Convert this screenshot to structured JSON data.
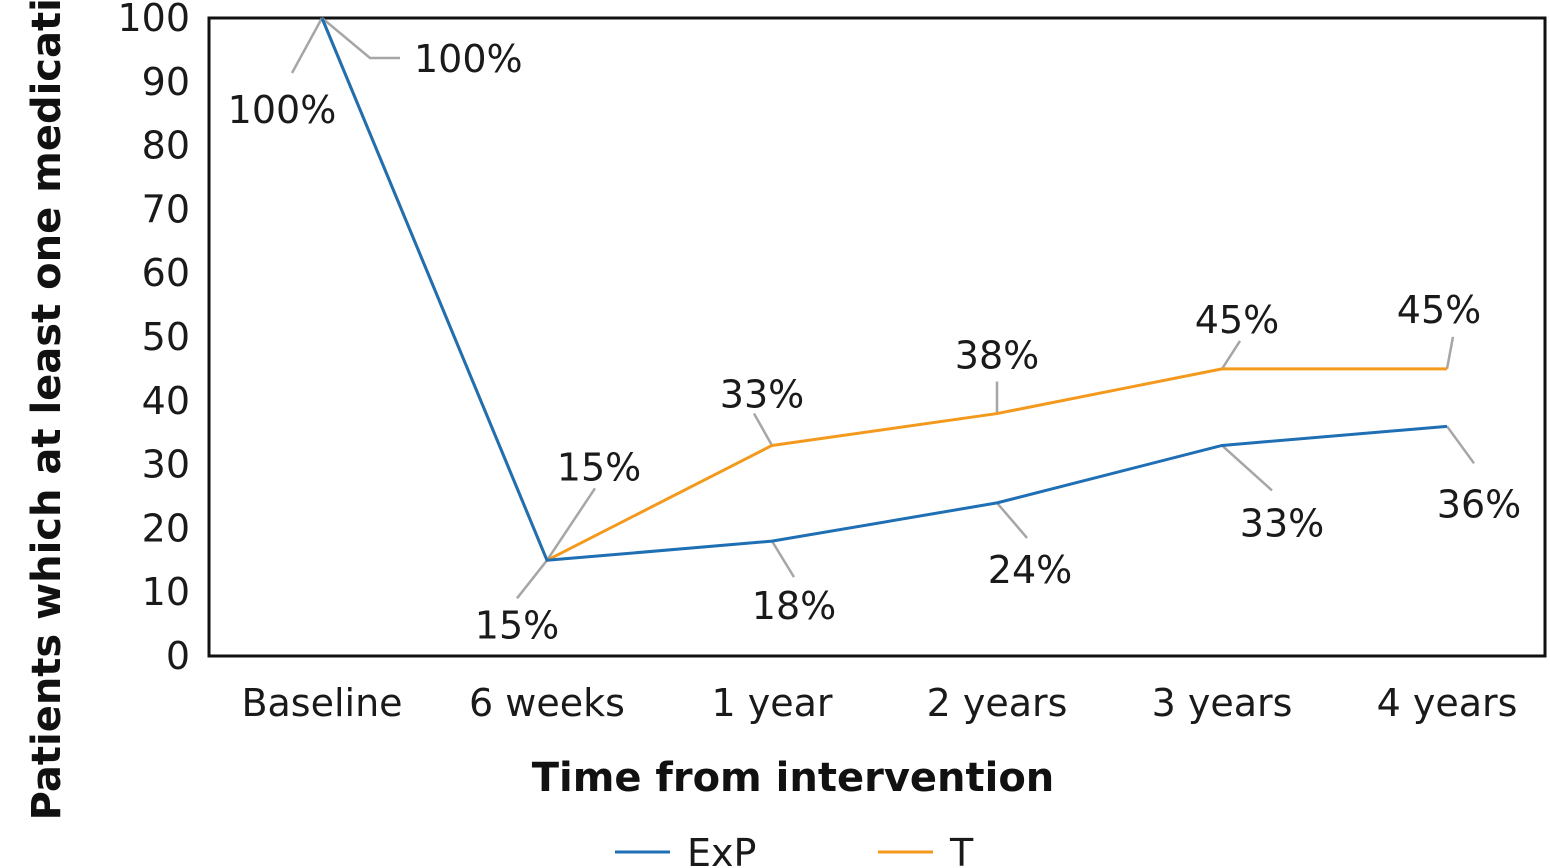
{
  "chart_data": {
    "type": "line",
    "categories": [
      "Baseline",
      "6 weeks",
      "1 year",
      "2 years",
      "3 years",
      "4 years"
    ],
    "xlabel": "Time from intervention",
    "ylabel": "Patients which at least one medication (%)",
    "ylim": [
      0,
      100
    ],
    "yticks": [
      0,
      10,
      20,
      30,
      40,
      50,
      60,
      70,
      80,
      90,
      100
    ],
    "grid": false,
    "legend_position": "bottom",
    "series": [
      {
        "name": "ExP",
        "color": "#1f6fb5",
        "values": [
          100,
          15,
          18,
          24,
          33,
          36
        ],
        "labels": [
          "100%",
          "15%",
          "18%",
          "24%",
          "33%",
          "36%"
        ]
      },
      {
        "name": "T",
        "color": "#f39a1e",
        "values": [
          100,
          15,
          33,
          38,
          45,
          45
        ],
        "labels": [
          "100%",
          "15%",
          "33%",
          "38%",
          "45%",
          "45%"
        ]
      }
    ]
  }
}
